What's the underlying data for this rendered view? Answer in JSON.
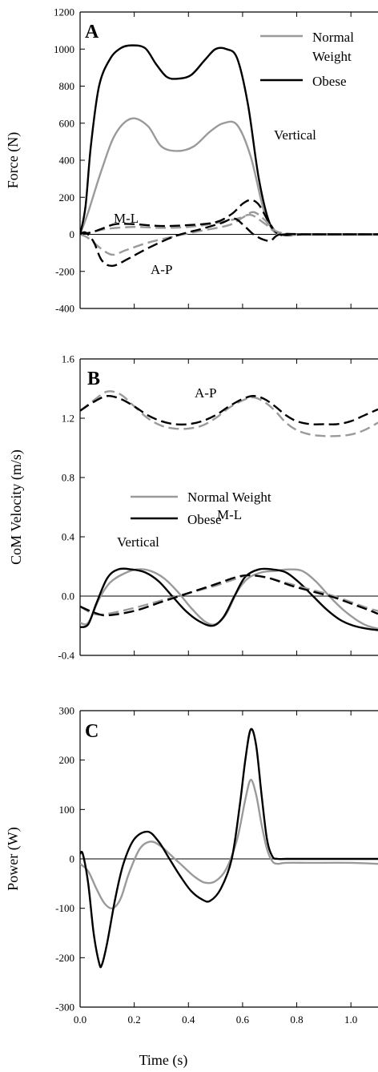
{
  "chart_data": [
    {
      "type": "line",
      "panel_label": "A",
      "ylabel": "Force (N)",
      "xlabel": "",
      "xlim": [
        0,
        1.1
      ],
      "ylim": [
        -400,
        1200
      ],
      "yticks": [
        -400,
        -200,
        0,
        200,
        400,
        600,
        800,
        1000,
        1200
      ],
      "ytick_labels": [
        "-400",
        "-200",
        "0",
        "200",
        "400",
        "600",
        "800",
        "1000",
        "1200"
      ],
      "xticks": [
        0.0,
        0.2,
        0.4,
        0.6,
        0.8,
        1.0
      ],
      "zero_line": true,
      "legend": {
        "placement": "top-right",
        "entries": [
          {
            "label_lines": [
              "Normal",
              "Weight"
            ],
            "color": "#9a9a9a"
          },
          {
            "label_lines": [
              "Obese"
            ],
            "color": "#000000"
          }
        ]
      },
      "annotations": [
        {
          "text": "Vertical",
          "x": 0.87,
          "y": 500
        },
        {
          "text": "M-L",
          "x": 0.2,
          "y": 72
        },
        {
          "text": "A-P",
          "x": 0.47,
          "y": -200
        }
      ],
      "series": [
        {
          "group": "Normal Weight",
          "component": "Vertical",
          "color": "#9a9a9a",
          "dash": false,
          "x": [
            0,
            0.03,
            0.08,
            0.13,
            0.19,
            0.25,
            0.3,
            0.36,
            0.42,
            0.48,
            0.53,
            0.58,
            0.63,
            0.68,
            0.72,
            0.76,
            0.85,
            1.1
          ],
          "y": [
            0,
            120,
            350,
            540,
            625,
            585,
            475,
            450,
            475,
            555,
            600,
            590,
            420,
            120,
            10,
            0,
            0,
            0
          ]
        },
        {
          "group": "Obese",
          "component": "Vertical",
          "color": "#000000",
          "dash": false,
          "x": [
            0,
            0.02,
            0.04,
            0.07,
            0.11,
            0.15,
            0.19,
            0.24,
            0.28,
            0.32,
            0.36,
            0.41,
            0.46,
            0.5,
            0.54,
            0.58,
            0.62,
            0.66,
            0.7,
            0.74,
            0.78,
            1.1
          ],
          "y": [
            0,
            150,
            480,
            800,
            945,
            1005,
            1020,
            1005,
            920,
            850,
            840,
            860,
            940,
            1000,
            1000,
            950,
            700,
            300,
            60,
            0,
            0,
            0
          ]
        },
        {
          "group": "Normal Weight",
          "component": "M-L",
          "color": "#9a9a9a",
          "dash": true,
          "x": [
            0,
            0.04,
            0.1,
            0.2,
            0.3,
            0.4,
            0.5,
            0.58,
            0.63,
            0.68,
            0.74,
            0.85,
            1.1
          ],
          "y": [
            0,
            10,
            30,
            40,
            35,
            40,
            60,
            85,
            105,
            60,
            0,
            0,
            0
          ]
        },
        {
          "group": "Obese",
          "component": "M-L",
          "color": "#000000",
          "dash": true,
          "x": [
            0,
            0.04,
            0.08,
            0.13,
            0.2,
            0.3,
            0.4,
            0.5,
            0.56,
            0.6,
            0.63,
            0.66,
            0.7,
            0.74,
            0.85,
            1.1
          ],
          "y": [
            0,
            10,
            30,
            55,
            55,
            45,
            50,
            65,
            110,
            165,
            185,
            160,
            60,
            0,
            0,
            0
          ]
        },
        {
          "group": "Normal Weight",
          "component": "A-P",
          "color": "#9a9a9a",
          "dash": true,
          "x": [
            0,
            0.03,
            0.08,
            0.12,
            0.17,
            0.25,
            0.35,
            0.45,
            0.55,
            0.6,
            0.64,
            0.68,
            0.72,
            0.78,
            0.85,
            1.1
          ],
          "y": [
            0,
            -20,
            -80,
            -110,
            -85,
            -45,
            -10,
            20,
            50,
            90,
            120,
            80,
            20,
            0,
            0,
            0
          ]
        },
        {
          "group": "Obese",
          "component": "A-P",
          "color": "#000000",
          "dash": true,
          "x": [
            0,
            0.02,
            0.05,
            0.08,
            0.12,
            0.18,
            0.25,
            0.35,
            0.45,
            0.52,
            0.57,
            0.61,
            0.65,
            0.7,
            0.74,
            0.85,
            1.1
          ],
          "y": [
            0,
            10,
            -40,
            -140,
            -170,
            -130,
            -75,
            -10,
            30,
            60,
            85,
            40,
            -10,
            -35,
            0,
            0,
            0
          ]
        }
      ]
    },
    {
      "type": "line",
      "panel_label": "B",
      "ylabel": "CoM Velocity (m/s)",
      "xlabel": "",
      "xlim": [
        0,
        1.1
      ],
      "ylim": [
        -0.4,
        1.6
      ],
      "yticks": [
        -0.4,
        0.0,
        0.4,
        0.8,
        1.2,
        1.6
      ],
      "ytick_labels": [
        "-0.4",
        "0.0",
        "0.4",
        "0.8",
        "1.2",
        "1.6"
      ],
      "xticks": [
        0.0,
        0.2,
        0.4,
        0.6,
        0.8,
        1.0
      ],
      "zero_line": true,
      "legend": {
        "placement": "center-left",
        "entries": [
          {
            "label_lines": [
              "Normal Weight"
            ],
            "color": "#9a9a9a"
          },
          {
            "label_lines": [
              "Obese"
            ],
            "color": "#000000"
          }
        ]
      },
      "annotations": [
        {
          "text": "A-P",
          "x": 0.47,
          "y": 1.42
        },
        {
          "text": "Vertical",
          "x": 0.2,
          "y": 0.36
        },
        {
          "text": "M-L",
          "x": 0.57,
          "y": 0.26
        }
      ],
      "series": [
        {
          "group": "Normal Weight",
          "component": "A-P",
          "color": "#9a9a9a",
          "dash": true,
          "x": [
            0,
            0.05,
            0.1,
            0.15,
            0.2,
            0.25,
            0.3,
            0.35,
            0.4,
            0.45,
            0.5,
            0.55,
            0.6,
            0.64,
            0.68,
            0.72,
            0.76,
            0.8,
            0.85,
            0.9,
            0.95,
            1.0,
            1.05,
            1.1
          ],
          "y": [
            1.25,
            1.32,
            1.38,
            1.36,
            1.28,
            1.2,
            1.15,
            1.13,
            1.13,
            1.15,
            1.2,
            1.27,
            1.32,
            1.34,
            1.31,
            1.25,
            1.17,
            1.12,
            1.09,
            1.08,
            1.08,
            1.09,
            1.12,
            1.17
          ]
        },
        {
          "group": "Obese",
          "component": "A-P",
          "color": "#000000",
          "dash": true,
          "x": [
            0,
            0.05,
            0.1,
            0.15,
            0.2,
            0.25,
            0.3,
            0.35,
            0.4,
            0.45,
            0.5,
            0.55,
            0.6,
            0.64,
            0.68,
            0.72,
            0.76,
            0.8,
            0.85,
            0.9,
            0.95,
            1.0,
            1.05,
            1.1
          ],
          "y": [
            1.25,
            1.31,
            1.35,
            1.33,
            1.28,
            1.22,
            1.18,
            1.16,
            1.16,
            1.18,
            1.22,
            1.28,
            1.33,
            1.35,
            1.33,
            1.28,
            1.22,
            1.18,
            1.16,
            1.16,
            1.16,
            1.18,
            1.22,
            1.26
          ]
        },
        {
          "group": "Normal Weight",
          "component": "Vertical",
          "color": "#9a9a9a",
          "dash": false,
          "x": [
            0,
            0.03,
            0.07,
            0.11,
            0.16,
            0.21,
            0.26,
            0.31,
            0.36,
            0.41,
            0.46,
            0.5,
            0.54,
            0.58,
            0.62,
            0.67,
            0.72,
            0.77,
            0.82,
            0.87,
            0.92,
            0.97,
            1.02,
            1.06,
            1.1
          ],
          "y": [
            -0.18,
            -0.18,
            -0.02,
            0.09,
            0.15,
            0.18,
            0.17,
            0.12,
            0.03,
            -0.08,
            -0.17,
            -0.19,
            -0.12,
            0.03,
            0.12,
            0.16,
            0.17,
            0.18,
            0.17,
            0.1,
            0.0,
            -0.09,
            -0.16,
            -0.2,
            -0.22
          ]
        },
        {
          "group": "Obese",
          "component": "Vertical",
          "color": "#000000",
          "dash": false,
          "x": [
            0,
            0.03,
            0.06,
            0.1,
            0.14,
            0.19,
            0.24,
            0.29,
            0.34,
            0.39,
            0.44,
            0.49,
            0.53,
            0.57,
            0.61,
            0.66,
            0.71,
            0.76,
            0.81,
            0.86,
            0.91,
            0.96,
            1.01,
            1.06,
            1.1
          ],
          "y": [
            -0.21,
            -0.19,
            -0.05,
            0.12,
            0.18,
            0.18,
            0.16,
            0.1,
            0.0,
            -0.1,
            -0.17,
            -0.2,
            -0.14,
            0.0,
            0.13,
            0.18,
            0.18,
            0.16,
            0.09,
            0.0,
            -0.09,
            -0.16,
            -0.2,
            -0.22,
            -0.23
          ]
        },
        {
          "group": "Normal Weight",
          "component": "M-L",
          "color": "#9a9a9a",
          "dash": true,
          "x": [
            0,
            0.05,
            0.1,
            0.2,
            0.3,
            0.4,
            0.5,
            0.58,
            0.62,
            0.68,
            0.76,
            0.84,
            0.92,
            1.0,
            1.06,
            1.1
          ],
          "y": [
            -0.07,
            -0.12,
            -0.12,
            -0.08,
            -0.03,
            0.02,
            0.07,
            0.12,
            0.14,
            0.13,
            0.09,
            0.05,
            0.01,
            -0.04,
            -0.08,
            -0.1
          ]
        },
        {
          "group": "Obese",
          "component": "M-L",
          "color": "#000000",
          "dash": true,
          "x": [
            0,
            0.05,
            0.1,
            0.2,
            0.3,
            0.4,
            0.5,
            0.58,
            0.63,
            0.7,
            0.78,
            0.86,
            0.94,
            1.0,
            1.06,
            1.1
          ],
          "y": [
            -0.07,
            -0.11,
            -0.13,
            -0.1,
            -0.04,
            0.02,
            0.08,
            0.13,
            0.14,
            0.12,
            0.07,
            0.03,
            -0.01,
            -0.05,
            -0.09,
            -0.12
          ]
        }
      ]
    },
    {
      "type": "line",
      "panel_label": "C",
      "ylabel": "Power (W)",
      "xlabel": "Time (s)",
      "xlim": [
        0,
        1.1
      ],
      "ylim": [
        -300,
        300
      ],
      "yticks": [
        -300,
        -200,
        -100,
        0,
        100,
        200,
        300
      ],
      "ytick_labels": [
        "-300",
        "-200",
        "-100",
        "0",
        "100",
        "200",
        "300"
      ],
      "xticks": [
        0.0,
        0.2,
        0.4,
        0.6,
        0.8,
        1.0
      ],
      "xtick_labels": [
        "0.0",
        "0.2",
        "0.4",
        "0.6",
        "0.8",
        "1.0"
      ],
      "zero_line": true,
      "annotations": [],
      "series": [
        {
          "group": "Normal Weight",
          "color": "#9a9a9a",
          "dash": false,
          "x": [
            0,
            0.03,
            0.06,
            0.09,
            0.12,
            0.15,
            0.18,
            0.22,
            0.26,
            0.3,
            0.34,
            0.38,
            0.42,
            0.46,
            0.5,
            0.54,
            0.58,
            0.61,
            0.63,
            0.65,
            0.67,
            0.69,
            0.71,
            0.73,
            0.76,
            0.85,
            1.0,
            1.1
          ],
          "y": [
            -10,
            -25,
            -60,
            -90,
            -100,
            -80,
            -30,
            20,
            35,
            25,
            5,
            -15,
            -35,
            -48,
            -45,
            -20,
            40,
            120,
            160,
            130,
            70,
            20,
            -5,
            -10,
            -8,
            -8,
            -8,
            -10
          ]
        },
        {
          "group": "Obese",
          "color": "#000000",
          "dash": false,
          "x": [
            0,
            0.01,
            0.03,
            0.05,
            0.07,
            0.08,
            0.1,
            0.13,
            0.16,
            0.2,
            0.25,
            0.29,
            0.33,
            0.37,
            0.41,
            0.45,
            0.48,
            0.52,
            0.56,
            0.59,
            0.61,
            0.63,
            0.65,
            0.67,
            0.69,
            0.71,
            0.73,
            0.76,
            0.85,
            1.0,
            1.1
          ],
          "y": [
            10,
            10,
            -50,
            -150,
            -210,
            -215,
            -170,
            -80,
            -10,
            40,
            55,
            35,
            0,
            -35,
            -65,
            -82,
            -85,
            -60,
            0,
            110,
            200,
            262,
            230,
            130,
            40,
            5,
            0,
            0,
            0,
            0,
            0
          ]
        }
      ]
    }
  ]
}
